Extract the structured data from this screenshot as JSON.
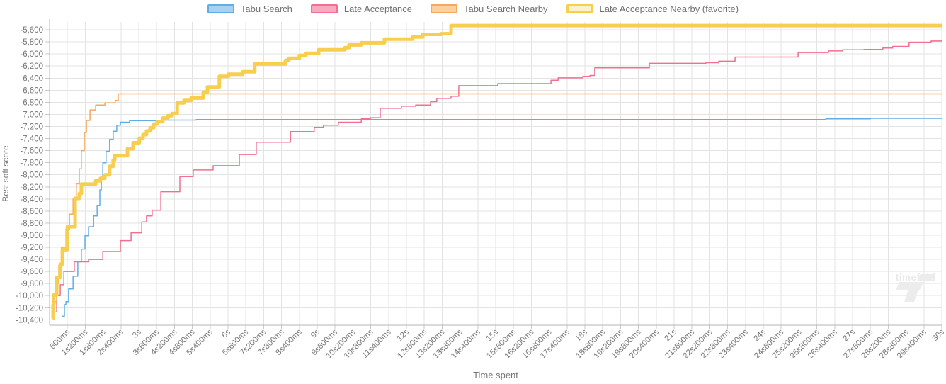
{
  "watermark": {
    "text": "timefold"
  },
  "axes": {
    "x_title": "Time spent",
    "y_title": "Best soft score"
  },
  "chart_data": {
    "type": "line",
    "step": true,
    "title": "",
    "xlabel": "Time spent",
    "ylabel": "Best soft score",
    "grid": true,
    "legend_position": "top-center",
    "xlim_s": [
      0,
      30
    ],
    "ylim": [
      -10490,
      -5470
    ],
    "x_ticks": {
      "interval_s": 0.6,
      "labels": [
        "600ms",
        "1s200ms",
        "1s800ms",
        "2s400ms",
        "3s",
        "3s600ms",
        "4s200ms",
        "4s800ms",
        "5s400ms",
        "6s",
        "6s600ms",
        "7s200ms",
        "7s800ms",
        "8s400ms",
        "9s",
        "9s600ms",
        "10s200ms",
        "10s800ms",
        "11s400ms",
        "12s",
        "12s600ms",
        "13s200ms",
        "13s800ms",
        "14s400ms",
        "15s",
        "15s600ms",
        "16s200ms",
        "16s800ms",
        "17s400ms",
        "18s",
        "18s600ms",
        "19s200ms",
        "19s800ms",
        "20s400ms",
        "21s",
        "21s600ms",
        "22s200ms",
        "22s800ms",
        "23s400ms",
        "24s",
        "24s600ms",
        "25s200ms",
        "25s800ms",
        "26s400ms",
        "27s",
        "27s600ms",
        "28s200ms",
        "28s800ms",
        "29s400ms",
        "30s"
      ]
    },
    "y_ticks": {
      "values": [
        -5600,
        -5800,
        -6000,
        -6200,
        -6400,
        -6600,
        -6800,
        -7000,
        -7200,
        -7400,
        -7600,
        -7800,
        -8000,
        -8200,
        -8400,
        -8600,
        -8800,
        -9000,
        -9200,
        -9400,
        -9600,
        -9800,
        -10000,
        -10200,
        -10400
      ],
      "labels": [
        "-5,600",
        "-5,800",
        "-6,000",
        "-6,200",
        "-6,400",
        "-6,600",
        "-6,800",
        "-7,000",
        "-7,200",
        "-7,400",
        "-7,600",
        "-7,800",
        "-8,000",
        "-8,200",
        "-8,400",
        "-8,600",
        "-8,800",
        "-9,000",
        "-9,200",
        "-9,400",
        "-9,600",
        "-9,800",
        "-10,000",
        "-10,200",
        "-10,400"
      ]
    },
    "colors": {
      "gridline": "#e3e3e3",
      "axis_line": "#b5b5b5",
      "tick": "#c9c9c9",
      "tick_label": "#757575"
    },
    "series": [
      {
        "id": "tabu-search",
        "name": "Tabu Search",
        "color": "#63ade5",
        "fill": "#a8d1f0",
        "line_width": 1.5,
        "favorite": false,
        "points": [
          [
            0.43,
            -10340
          ],
          [
            0.5,
            -10150
          ],
          [
            0.55,
            -10100
          ],
          [
            0.64,
            -9890
          ],
          [
            0.79,
            -9680
          ],
          [
            0.95,
            -9440
          ],
          [
            1.07,
            -9230
          ],
          [
            1.19,
            -9010
          ],
          [
            1.31,
            -8860
          ],
          [
            1.48,
            -8680
          ],
          [
            1.6,
            -8510
          ],
          [
            1.69,
            -8250
          ],
          [
            1.74,
            -8075
          ],
          [
            1.79,
            -7800
          ],
          [
            1.9,
            -7610
          ],
          [
            2.02,
            -7415
          ],
          [
            2.14,
            -7280
          ],
          [
            2.26,
            -7180
          ],
          [
            2.38,
            -7130
          ],
          [
            2.69,
            -7105
          ],
          [
            3.76,
            -7095
          ],
          [
            4.93,
            -7085
          ],
          [
            26.1,
            -7075
          ],
          [
            27.6,
            -7065
          ],
          [
            30,
            -7065
          ]
        ]
      },
      {
        "id": "late-acceptance",
        "name": "Late Acceptance",
        "color": "#f1708f",
        "fill": "#f8a9bf",
        "line_width": 1.5,
        "favorite": false,
        "points": [
          [
            0.2,
            -10270
          ],
          [
            0.24,
            -10000
          ],
          [
            0.36,
            -9820
          ],
          [
            0.48,
            -9600
          ],
          [
            0.83,
            -9440
          ],
          [
            1.31,
            -9400
          ],
          [
            1.79,
            -9270
          ],
          [
            2.38,
            -9090
          ],
          [
            2.74,
            -8960
          ],
          [
            3.1,
            -8780
          ],
          [
            3.26,
            -8680
          ],
          [
            3.45,
            -8585
          ],
          [
            3.74,
            -8280
          ],
          [
            4.38,
            -8030
          ],
          [
            4.83,
            -7920
          ],
          [
            5.5,
            -7850
          ],
          [
            6.38,
            -7665
          ],
          [
            6.95,
            -7460
          ],
          [
            8.1,
            -7285
          ],
          [
            8.9,
            -7215
          ],
          [
            9.21,
            -7180
          ],
          [
            9.71,
            -7130
          ],
          [
            10.48,
            -7075
          ],
          [
            10.79,
            -7055
          ],
          [
            11.12,
            -6900
          ],
          [
            11.83,
            -6865
          ],
          [
            12.31,
            -6845
          ],
          [
            12.81,
            -6790
          ],
          [
            13.02,
            -6735
          ],
          [
            13.5,
            -6700
          ],
          [
            13.76,
            -6525
          ],
          [
            15.07,
            -6490
          ],
          [
            16.86,
            -6435
          ],
          [
            17.1,
            -6395
          ],
          [
            17.93,
            -6370
          ],
          [
            18.17,
            -6355
          ],
          [
            18.33,
            -6230
          ],
          [
            20.17,
            -6155
          ],
          [
            22.07,
            -6145
          ],
          [
            22.5,
            -6120
          ],
          [
            23.05,
            -6050
          ],
          [
            25.17,
            -5975
          ],
          [
            26.19,
            -5950
          ],
          [
            26.67,
            -5930
          ],
          [
            27.38,
            -5925
          ],
          [
            28.02,
            -5900
          ],
          [
            28.35,
            -5875
          ],
          [
            28.9,
            -5805
          ],
          [
            29.64,
            -5785
          ],
          [
            30,
            -5785
          ]
        ]
      },
      {
        "id": "tabu-search-nearby",
        "name": "Tabu Search Nearby",
        "color": "#f6a85e",
        "fill": "#fbd0a0",
        "line_width": 1.5,
        "favorite": false,
        "points": [
          [
            0.12,
            -10380
          ],
          [
            0.17,
            -10100
          ],
          [
            0.24,
            -9800
          ],
          [
            0.31,
            -9500
          ],
          [
            0.4,
            -9200
          ],
          [
            0.55,
            -8900
          ],
          [
            0.67,
            -8650
          ],
          [
            0.79,
            -8400
          ],
          [
            0.9,
            -8150
          ],
          [
            1.0,
            -7900
          ],
          [
            1.07,
            -7600
          ],
          [
            1.17,
            -7300
          ],
          [
            1.24,
            -7100
          ],
          [
            1.36,
            -6925
          ],
          [
            1.55,
            -6845
          ],
          [
            1.86,
            -6810
          ],
          [
            2.21,
            -6770
          ],
          [
            2.31,
            -6660
          ],
          [
            30,
            -6660
          ]
        ]
      },
      {
        "id": "late-acceptance-nearby",
        "name": "Late Acceptance Nearby (favorite)",
        "color": "#f8ce4f",
        "fill": "#fbf1cc",
        "line_width": 5,
        "favorite": true,
        "points": [
          [
            0.1,
            -10380
          ],
          [
            0.12,
            -10150
          ],
          [
            0.14,
            -9990
          ],
          [
            0.24,
            -9700
          ],
          [
            0.36,
            -9480
          ],
          [
            0.43,
            -9240
          ],
          [
            0.6,
            -8860
          ],
          [
            0.86,
            -8390
          ],
          [
            1.0,
            -8310
          ],
          [
            1.07,
            -8155
          ],
          [
            1.55,
            -8100
          ],
          [
            1.71,
            -8057
          ],
          [
            1.86,
            -8000
          ],
          [
            2.02,
            -7860
          ],
          [
            2.14,
            -7755
          ],
          [
            2.19,
            -7685
          ],
          [
            2.62,
            -7570
          ],
          [
            2.81,
            -7470
          ],
          [
            3.02,
            -7395
          ],
          [
            3.14,
            -7335
          ],
          [
            3.26,
            -7275
          ],
          [
            3.38,
            -7220
          ],
          [
            3.5,
            -7160
          ],
          [
            3.62,
            -7120
          ],
          [
            3.81,
            -7060
          ],
          [
            3.98,
            -7022
          ],
          [
            4.12,
            -6985
          ],
          [
            4.29,
            -6810
          ],
          [
            4.52,
            -6770
          ],
          [
            4.76,
            -6730
          ],
          [
            5.17,
            -6630
          ],
          [
            5.31,
            -6545
          ],
          [
            5.71,
            -6370
          ],
          [
            6.02,
            -6335
          ],
          [
            6.5,
            -6295
          ],
          [
            6.9,
            -6165
          ],
          [
            7.93,
            -6105
          ],
          [
            8.05,
            -6070
          ],
          [
            8.4,
            -6025
          ],
          [
            8.62,
            -5990
          ],
          [
            9.05,
            -5930
          ],
          [
            9.93,
            -5895
          ],
          [
            10.07,
            -5850
          ],
          [
            10.48,
            -5815
          ],
          [
            11.26,
            -5755
          ],
          [
            12.21,
            -5720
          ],
          [
            12.55,
            -5675
          ],
          [
            13.17,
            -5665
          ],
          [
            13.5,
            -5530
          ],
          [
            30,
            -5530
          ]
        ]
      }
    ]
  }
}
